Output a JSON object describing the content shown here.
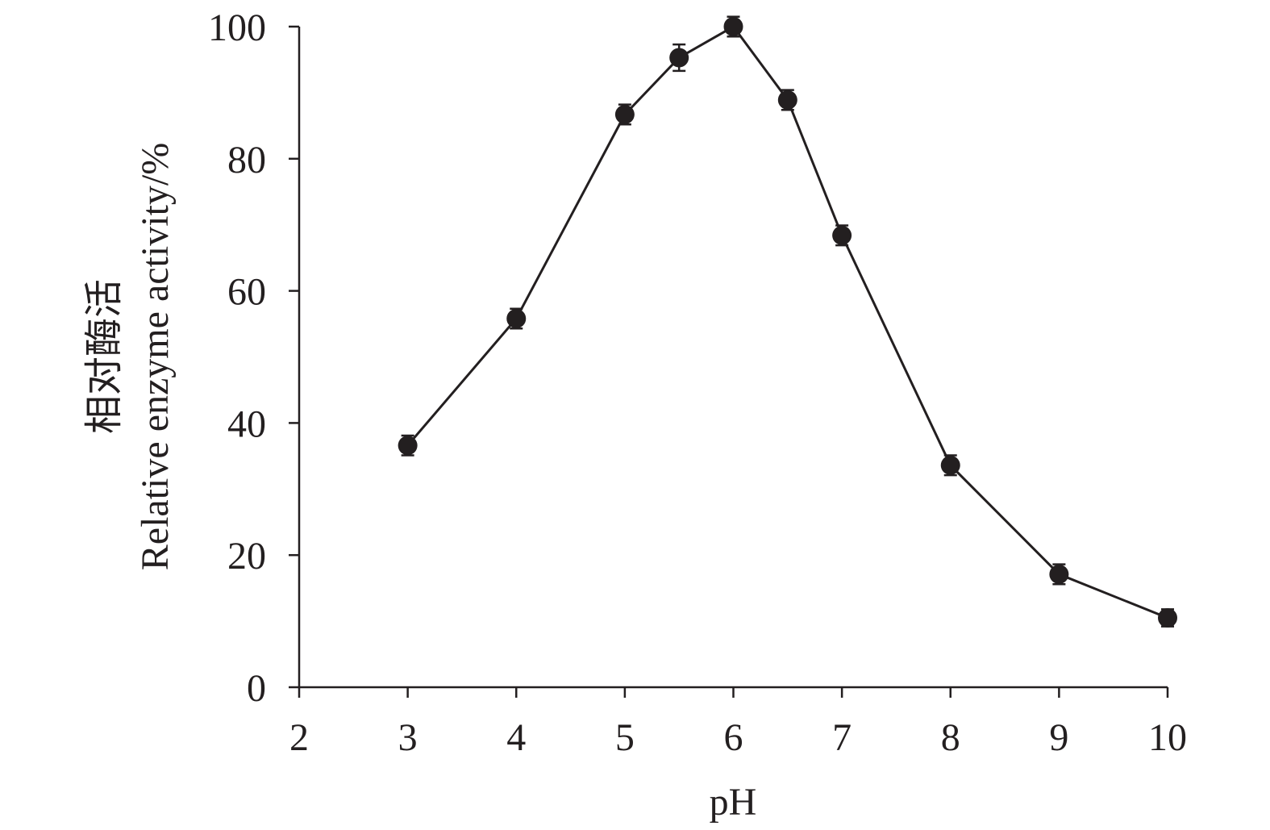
{
  "chart_data": {
    "type": "line",
    "title": "",
    "xlabel": "pH",
    "ylabel_lines": [
      "相对酶活",
      "Relative enzyme activity/%"
    ],
    "xlim": [
      2,
      10
    ],
    "ylim": [
      0,
      100
    ],
    "x_ticks": [
      2,
      3,
      4,
      5,
      6,
      7,
      8,
      9,
      10
    ],
    "y_ticks": [
      0,
      20,
      40,
      60,
      80,
      100
    ],
    "grid": false,
    "legend": "none",
    "series": [
      {
        "x": [
          3,
          4,
          5,
          5.5,
          6,
          6.5,
          7,
          8,
          9,
          10
        ],
        "y": [
          36.6,
          55.8,
          86.7,
          95.3,
          100,
          88.9,
          68.4,
          33.6,
          17.1,
          10.5
        ],
        "error": [
          1.5,
          1.5,
          1.5,
          2.0,
          1.5,
          1.5,
          1.5,
          1.5,
          1.5,
          1.3
        ]
      }
    ],
    "colors": {
      "ink": "#231f20"
    }
  }
}
